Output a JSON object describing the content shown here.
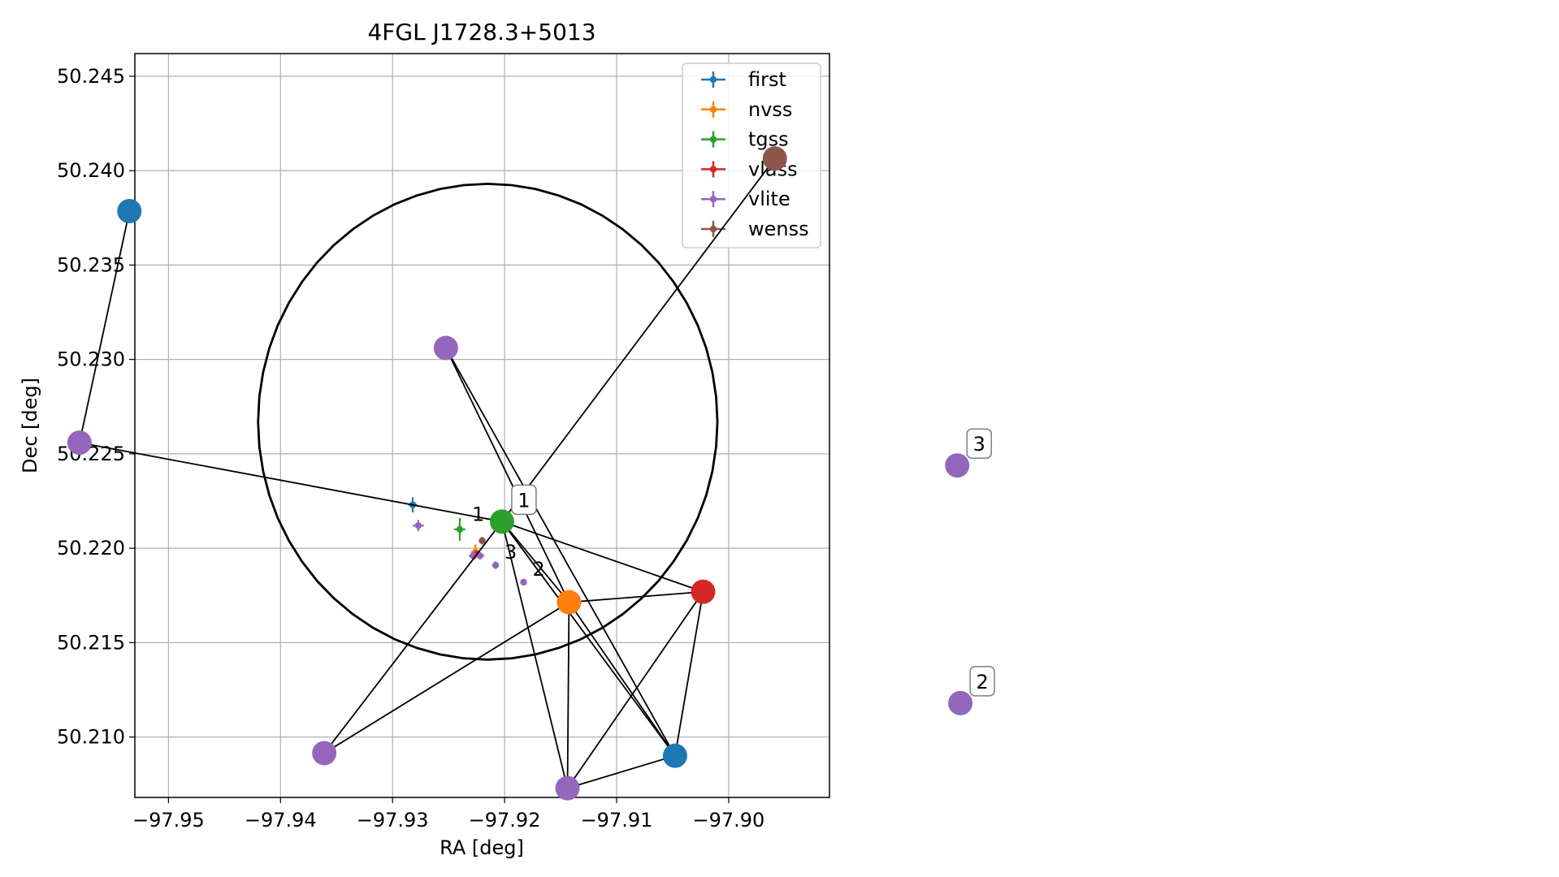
{
  "chart_data": [
    {
      "type": "scatter",
      "title": "4FGL J1728.3+5013",
      "xlabel": "RA [deg]",
      "ylabel": "Dec [deg]",
      "xlim": [
        -97.953,
        -97.891
      ],
      "ylim": [
        50.2068,
        50.2462
      ],
      "xticks": [
        -97.95,
        -97.94,
        -97.93,
        -97.92,
        -97.91,
        -97.9
      ],
      "xtick_labels": [
        "−97.95",
        "−97.94",
        "−97.93",
        "−97.92",
        "−97.91",
        "−97.90"
      ],
      "yticks": [
        50.21,
        50.215,
        50.22,
        50.225,
        50.23,
        50.235,
        50.24,
        50.245
      ],
      "ytick_labels": [
        "50.210",
        "50.215",
        "50.220",
        "50.225",
        "50.230",
        "50.235",
        "50.240",
        "50.245"
      ],
      "grid": true,
      "legend_position": "top-right",
      "circle": {
        "ra": -97.9215,
        "dec": 50.2267,
        "radius_ra": 0.0205,
        "radius_dec": 0.0126,
        "color": "#000000"
      },
      "series": [
        {
          "name": "first",
          "color": "#1f77b4",
          "points": [
            {
              "x": -97.9282,
              "y": 50.2223,
              "xerr": 0.0004,
              "yerr": 0.0004
            }
          ]
        },
        {
          "name": "nvss",
          "color": "#ff7f0e",
          "points": [
            {
              "x": -97.9226,
              "y": 50.2198,
              "xerr": 0.0004,
              "yerr": 0.0004
            }
          ]
        },
        {
          "name": "tgss",
          "color": "#2ca02c",
          "points": [
            {
              "x": -97.924,
              "y": 50.221,
              "xerr": 0.0005,
              "yerr": 0.0006
            }
          ]
        },
        {
          "name": "vlass",
          "color": "#d62728",
          "points": [
            {
              "x": -97.9225,
              "y": 50.2197,
              "xerr": 0.0001,
              "yerr": 0.0001
            }
          ]
        },
        {
          "name": "vlite",
          "color": "#9467bd",
          "points": [
            {
              "x": -97.9277,
              "y": 50.2212,
              "xerr": 0.0005,
              "yerr": 0.0003
            },
            {
              "x": -97.9228,
              "y": 50.2196,
              "xerr": 0.0004,
              "yerr": 0.0002
            },
            {
              "x": -97.9222,
              "y": 50.2196,
              "xerr": 0.0004,
              "yerr": 0.0002
            },
            {
              "x": -97.9208,
              "y": 50.2191,
              "xerr": 0.0003,
              "yerr": 0.0002
            },
            {
              "x": -97.9183,
              "y": 50.2182,
              "xerr": 0.0002,
              "yerr": 0.0001
            }
          ]
        },
        {
          "name": "wenss",
          "color": "#8c564b",
          "points": [
            {
              "x": -97.922,
              "y": 50.2204,
              "xerr": 0.0002,
              "yerr": 0.0002
            }
          ]
        }
      ],
      "annotations": [
        {
          "text": "1",
          "x": -97.9237,
          "y": 50.2211
        },
        {
          "text": "3",
          "x": -97.9208,
          "y": 50.2191
        },
        {
          "text": "2",
          "x": -97.9183,
          "y": 50.2182
        }
      ]
    },
    {
      "type": "network",
      "nodes": [
        {
          "id": "n_first_a",
          "color": "#1f77b4",
          "x": 0.083,
          "y": 0.1
        },
        {
          "id": "n_wenss",
          "color": "#8c564b",
          "x": 0.497,
          "y": 0.04
        },
        {
          "id": "n_vlite_a",
          "color": "#9467bd",
          "x": 0.286,
          "y": 0.256
        },
        {
          "id": "n_vlite_b",
          "color": "#9467bd",
          "x": 0.051,
          "y": 0.364
        },
        {
          "id": "n_tgss",
          "color": "#2ca02c",
          "x": 0.322,
          "y": 0.454,
          "label": "1"
        },
        {
          "id": "n_nvss",
          "color": "#ff7f0e",
          "x": 0.365,
          "y": 0.546
        },
        {
          "id": "n_vlass",
          "color": "#d62728",
          "x": 0.451,
          "y": 0.534
        },
        {
          "id": "n_vlite_c",
          "color": "#9467bd",
          "x": 0.208,
          "y": 0.718
        },
        {
          "id": "n_vlite_d",
          "color": "#9467bd",
          "x": 0.364,
          "y": 0.758
        },
        {
          "id": "n_first_b",
          "color": "#1f77b4",
          "x": 0.433,
          "y": 0.721
        },
        {
          "id": "n_vlite_3",
          "color": "#9467bd",
          "x": 0.614,
          "y": 0.39,
          "label": "3"
        },
        {
          "id": "n_vlite_2",
          "color": "#9467bd",
          "x": 0.616,
          "y": 0.661,
          "label": "2"
        }
      ],
      "edges": [
        [
          "n_first_a",
          "n_vlite_b"
        ],
        [
          "n_vlite_b",
          "n_tgss"
        ],
        [
          "n_wenss",
          "n_tgss"
        ],
        [
          "n_vlite_a",
          "n_nvss"
        ],
        [
          "n_vlite_a",
          "n_first_b"
        ],
        [
          "n_tgss",
          "n_nvss"
        ],
        [
          "n_tgss",
          "n_vlass"
        ],
        [
          "n_tgss",
          "n_vlite_c"
        ],
        [
          "n_tgss",
          "n_vlite_d"
        ],
        [
          "n_tgss",
          "n_first_b"
        ],
        [
          "n_nvss",
          "n_vlass"
        ],
        [
          "n_nvss",
          "n_vlite_c"
        ],
        [
          "n_nvss",
          "n_vlite_d"
        ],
        [
          "n_nvss",
          "n_first_b"
        ],
        [
          "n_vlass",
          "n_vlite_d"
        ],
        [
          "n_vlass",
          "n_first_b"
        ],
        [
          "n_vlite_d",
          "n_first_b"
        ]
      ]
    }
  ]
}
